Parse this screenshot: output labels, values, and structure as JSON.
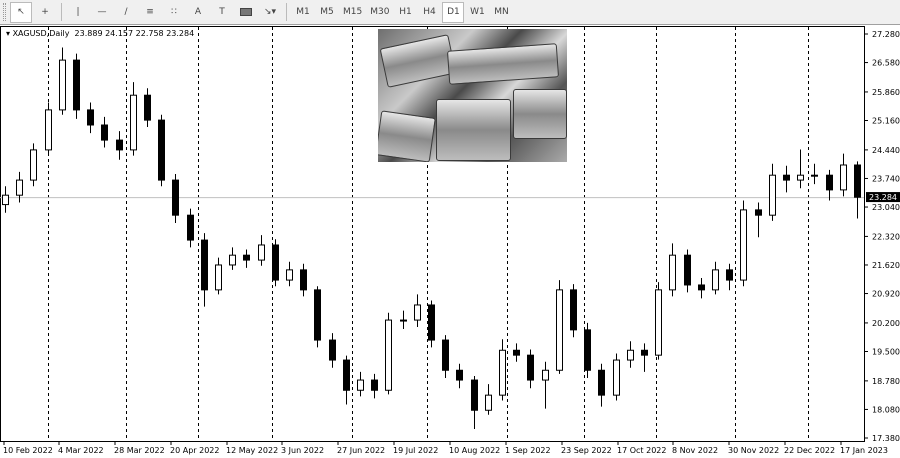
{
  "toolbar": {
    "tools": [
      "cursor-icon",
      "crosshair-icon",
      "vertical-line-icon",
      "horizontal-line-icon",
      "trendline-icon",
      "fibonacci-icon",
      "fibo-fan-icon",
      "text-icon",
      "text-label-icon",
      "rectangle-icon",
      "arrows-icon"
    ],
    "text_tool": "A",
    "timeframes": [
      "M1",
      "M5",
      "M15",
      "M30",
      "H1",
      "H4",
      "D1",
      "W1",
      "MN"
    ],
    "active_timeframe": "D1"
  },
  "legend": {
    "symbol": "XAGUSD,Daily",
    "open": "23.889",
    "high": "24.157",
    "low": "22.758",
    "close": "23.284"
  },
  "chart_data": {
    "type": "candlestick",
    "title": "XAGUSD,Daily",
    "ylim": [
      17.38,
      27.28
    ],
    "y_ticks": [
      "27.280",
      "26.580",
      "25.860",
      "25.160",
      "24.440",
      "23.740",
      "23.040",
      "22.320",
      "21.620",
      "20.920",
      "20.200",
      "19.500",
      "18.780",
      "18.080",
      "17.380"
    ],
    "x_ticks": [
      "10 Feb 2022",
      "4 Mar 2022",
      "28 Mar 2022",
      "20 Apr 2022",
      "12 May 2022",
      "3 Jun 2022",
      "27 Jun 2022",
      "19 Jul 2022",
      "10 Aug 2022",
      "1 Sep 2022",
      "23 Sep 2022",
      "17 Oct 2022",
      "8 Nov 2022",
      "30 Nov 2022",
      "22 Dec 2022",
      "17 Jan 2023"
    ],
    "current_price": "23.284",
    "grid": "vertical dashed",
    "colors": {
      "up": "#000000",
      "down": "#000000",
      "up_body": "#ffffff",
      "down_body": "#000000",
      "price_label_bg": "#000000"
    },
    "candles": [
      [
        23.1,
        23.55,
        22.9,
        23.33
      ],
      [
        23.33,
        23.9,
        23.15,
        23.7
      ],
      [
        23.7,
        24.6,
        23.55,
        24.44
      ],
      [
        24.44,
        25.6,
        24.3,
        25.42
      ],
      [
        25.42,
        26.95,
        25.3,
        26.64
      ],
      [
        26.64,
        26.8,
        25.2,
        25.42
      ],
      [
        25.42,
        25.6,
        24.85,
        25.05
      ],
      [
        25.05,
        25.25,
        24.5,
        24.68
      ],
      [
        24.68,
        24.9,
        24.2,
        24.44
      ],
      [
        24.44,
        26.1,
        24.3,
        25.78
      ],
      [
        25.78,
        25.95,
        25.0,
        25.17
      ],
      [
        25.17,
        25.3,
        23.55,
        23.7
      ],
      [
        23.7,
        23.85,
        22.65,
        22.84
      ],
      [
        22.84,
        23.0,
        22.05,
        22.23
      ],
      [
        22.23,
        22.4,
        20.6,
        21.01
      ],
      [
        21.01,
        21.8,
        20.9,
        21.62
      ],
      [
        21.62,
        22.05,
        21.5,
        21.86
      ],
      [
        21.86,
        22.0,
        21.55,
        21.74
      ],
      [
        21.74,
        22.35,
        21.6,
        22.11
      ],
      [
        22.11,
        22.25,
        21.1,
        21.25
      ],
      [
        21.25,
        21.7,
        21.1,
        21.5
      ],
      [
        21.5,
        21.65,
        20.85,
        21.01
      ],
      [
        21.01,
        21.1,
        19.6,
        19.78
      ],
      [
        19.78,
        19.95,
        19.1,
        19.29
      ],
      [
        19.29,
        19.4,
        18.2,
        18.55
      ],
      [
        18.55,
        19.0,
        18.4,
        18.8
      ],
      [
        18.8,
        18.95,
        18.35,
        18.55
      ],
      [
        18.55,
        20.45,
        18.45,
        20.27
      ],
      [
        20.27,
        20.5,
        20.05,
        20.27
      ],
      [
        20.27,
        20.9,
        20.1,
        20.64
      ],
      [
        20.64,
        20.75,
        19.6,
        19.78
      ],
      [
        19.78,
        19.9,
        18.85,
        19.04
      ],
      [
        19.04,
        19.2,
        18.6,
        18.8
      ],
      [
        18.8,
        18.9,
        17.6,
        18.06
      ],
      [
        18.06,
        18.7,
        17.95,
        18.43
      ],
      [
        18.43,
        19.8,
        18.3,
        19.53
      ],
      [
        19.53,
        19.7,
        19.25,
        19.41
      ],
      [
        19.41,
        19.55,
        18.6,
        18.8
      ],
      [
        18.8,
        19.25,
        18.1,
        19.04
      ],
      [
        19.04,
        21.25,
        18.95,
        21.01
      ],
      [
        21.01,
        21.15,
        19.85,
        20.03
      ],
      [
        20.03,
        20.2,
        18.85,
        19.04
      ],
      [
        19.04,
        19.2,
        18.15,
        18.43
      ],
      [
        18.43,
        19.45,
        18.3,
        19.29
      ],
      [
        19.29,
        19.75,
        19.1,
        19.53
      ],
      [
        19.53,
        19.7,
        19.0,
        19.41
      ],
      [
        19.41,
        21.2,
        19.3,
        21.01
      ],
      [
        21.01,
        22.15,
        20.85,
        21.86
      ],
      [
        21.86,
        22.0,
        20.95,
        21.13
      ],
      [
        21.13,
        21.3,
        20.8,
        21.01
      ],
      [
        21.01,
        21.7,
        20.9,
        21.5
      ],
      [
        21.5,
        21.65,
        21.0,
        21.25
      ],
      [
        21.25,
        23.2,
        21.1,
        22.97
      ],
      [
        22.97,
        23.15,
        22.3,
        22.84
      ],
      [
        22.84,
        24.1,
        22.7,
        23.82
      ],
      [
        23.82,
        24.05,
        23.4,
        23.7
      ],
      [
        23.7,
        24.45,
        23.5,
        23.82
      ],
      [
        23.82,
        24.1,
        23.6,
        23.82
      ],
      [
        23.82,
        23.95,
        23.2,
        23.46
      ],
      [
        23.46,
        24.35,
        23.3,
        24.07
      ],
      [
        24.07,
        24.16,
        22.76,
        23.28
      ]
    ]
  }
}
